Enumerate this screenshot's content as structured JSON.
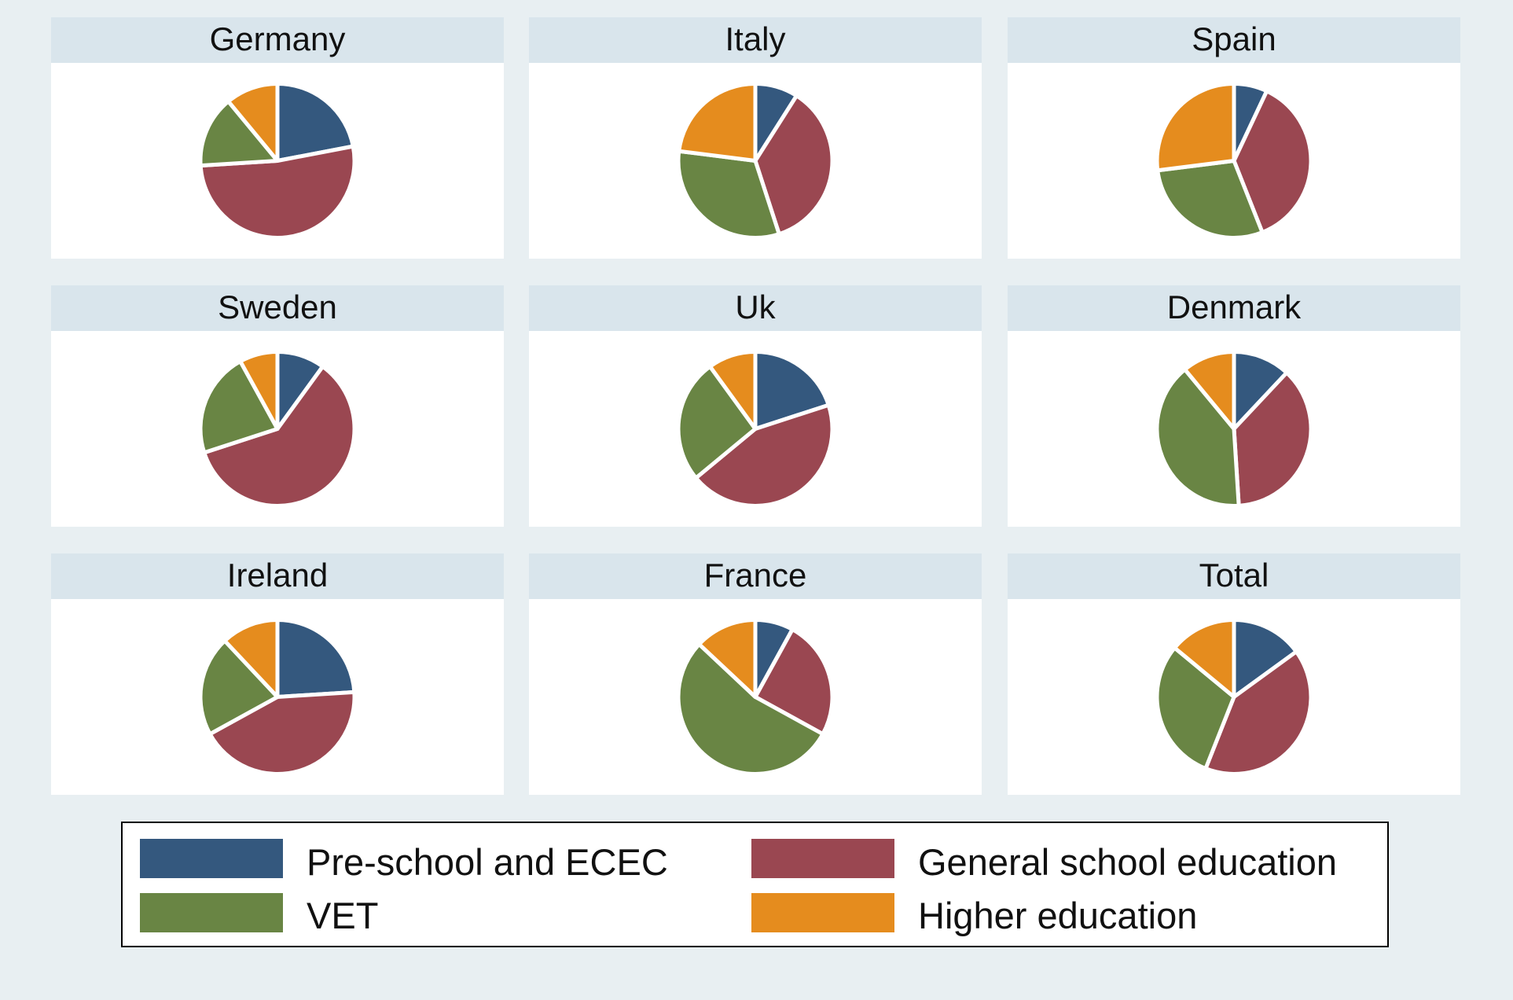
{
  "chart_data": {
    "type": "pie",
    "categories": [
      "Pre-school and ECEC",
      "General school education",
      "VET",
      "Higher education"
    ],
    "colors": {
      "Pre-school and ECEC": "#34587e",
      "General school education": "#9a4751",
      "VET": "#698544",
      "Higher education": "#e58c1e"
    },
    "panels": [
      {
        "title": "Germany",
        "values": {
          "Pre-school and ECEC": 22,
          "General school education": 52,
          "VET": 15,
          "Higher education": 11
        }
      },
      {
        "title": "Italy",
        "values": {
          "Pre-school and ECEC": 9,
          "General school education": 36,
          "VET": 32,
          "Higher education": 23
        }
      },
      {
        "title": "Spain",
        "values": {
          "Pre-school and ECEC": 7,
          "General school education": 37,
          "VET": 29,
          "Higher education": 27
        }
      },
      {
        "title": "Sweden",
        "values": {
          "Pre-school and ECEC": 10,
          "General school education": 60,
          "VET": 22,
          "Higher education": 8
        }
      },
      {
        "title": "Uk",
        "values": {
          "Pre-school and ECEC": 20,
          "General school education": 44,
          "VET": 26,
          "Higher education": 10
        }
      },
      {
        "title": "Denmark",
        "values": {
          "Pre-school and ECEC": 12,
          "General school education": 37,
          "VET": 40,
          "Higher education": 11
        }
      },
      {
        "title": "Ireland",
        "values": {
          "Pre-school and ECEC": 24,
          "General school education": 43,
          "VET": 21,
          "Higher education": 12
        }
      },
      {
        "title": "France",
        "values": {
          "Pre-school and ECEC": 8,
          "General school education": 25,
          "VET": 54,
          "Higher education": 13
        }
      },
      {
        "title": "Total",
        "values": {
          "Pre-school and ECEC": 15,
          "General school education": 41,
          "VET": 30,
          "Higher education": 14
        }
      }
    ],
    "legend": {
      "position": "bottom",
      "columns": 2,
      "items": [
        "Pre-school and ECEC",
        "General school education",
        "VET",
        "Higher education"
      ]
    }
  }
}
